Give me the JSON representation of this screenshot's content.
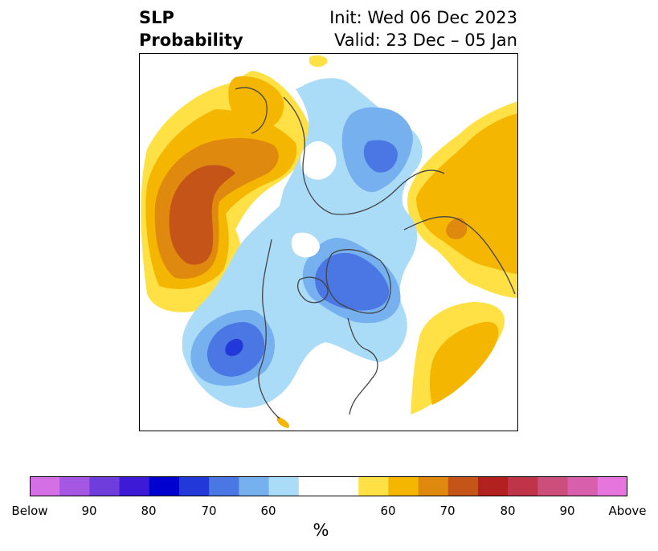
{
  "title": {
    "left_line1": "SLP",
    "left_line2": "Probability",
    "right_line1": "Init: Wed 06 Dec 2023",
    "right_line2": "Valid: 23 Dec – 05 Jan"
  },
  "colorbar": {
    "unit": "%",
    "colors": [
      "#d46fe6",
      "#a556e2",
      "#6f3ddb",
      "#3d1bd6",
      "#0000cf",
      "#2338d8",
      "#4a77e4",
      "#76b0ef",
      "#aadcf8",
      "#ffffff",
      "#ffffff",
      "#ffe045",
      "#f4b600",
      "#df8a0e",
      "#c55418",
      "#b32020",
      "#bf3448",
      "#cc4f7b",
      "#d85fab",
      "#e676dd"
    ],
    "tick_labels": [
      "Below",
      "90",
      "80",
      "70",
      "60",
      "60",
      "70",
      "80",
      "90",
      "Above"
    ]
  },
  "map": {
    "below_colors": {
      "p50": "#aadcf8",
      "p60": "#76b0ef",
      "p70": "#4a77e4",
      "p80": "#2338d8"
    },
    "above_colors": {
      "p50": "#ffe045",
      "p60": "#f4b600",
      "p70": "#df8a0e",
      "p80": "#c55418"
    },
    "coastline_color": "#444444"
  }
}
